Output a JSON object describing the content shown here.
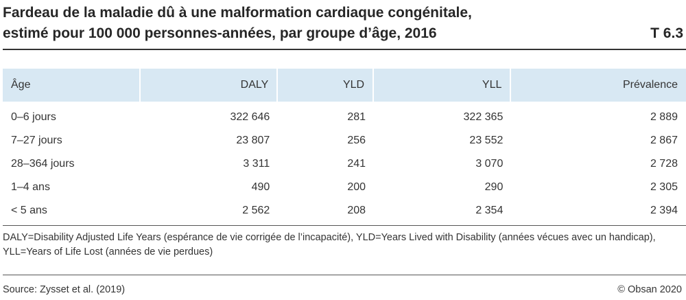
{
  "title": {
    "line1": "Fardeau de la maladie dû à une malformation cardiaque congénitale,",
    "line2": "estimé pour 100 000 personnes-années, par groupe d’âge, 2016",
    "code": "T 6.3"
  },
  "table": {
    "headers": [
      "Âge",
      "DALY",
      "YLD",
      "YLL",
      "Prévalence"
    ],
    "rows": [
      [
        "0–6 jours",
        "322 646",
        "281",
        "322 365",
        "2 889"
      ],
      [
        "7–27 jours",
        "23 807",
        "256",
        "23 552",
        "2 867"
      ],
      [
        "28–364 jours",
        "3 311",
        "241",
        "3 070",
        "2 728"
      ],
      [
        "1–4 ans",
        "490",
        "200",
        "290",
        "2 305"
      ],
      [
        "< 5 ans",
        "2 562",
        "208",
        "2 354",
        "2 394"
      ]
    ]
  },
  "footnote": "DALY=Disability Adjusted Life Years (espérance de vie corrigée de l’incapacité), YLD=Years Lived with Disability (années vécues avec un handicap), YLL=Years of Life Lost (années de vie perdues)",
  "source": "Source: Zysset et al. (2019)",
  "credit": "© Obsan 2020",
  "colors": {
    "header_bg": "#d8e8f3",
    "rule": "#333333"
  }
}
